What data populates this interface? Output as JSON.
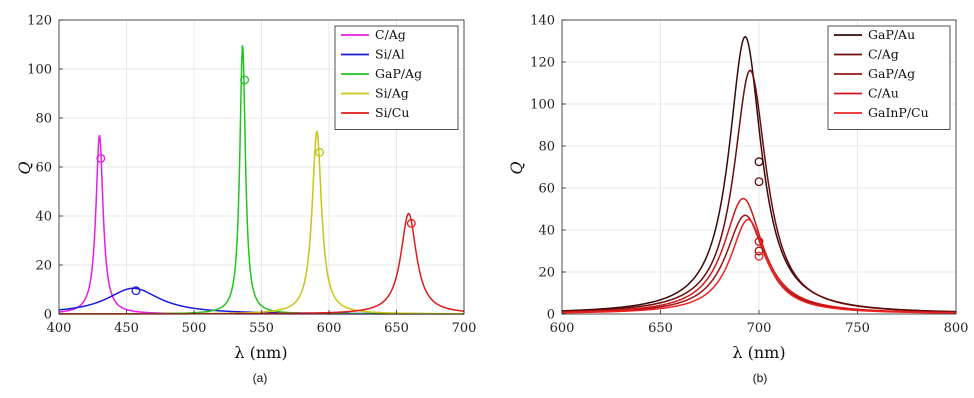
{
  "colors": {
    "magenta": "#e81ce8",
    "blue": "#1a1adb",
    "green": "#22c322",
    "olive": "#c9c415",
    "red": "#e01b1b",
    "dark1": "#3a0a0a",
    "dark2": "#6b0c0c",
    "dark3": "#9a1414",
    "red2": "#d01818",
    "red3": "#ee2222"
  },
  "chart_data": [
    {
      "type": "line",
      "caption": "(a)",
      "xlabel": "λ (nm)",
      "ylabel": "Q",
      "xlim": [
        400,
        700
      ],
      "ylim": [
        0,
        120
      ],
      "xticks": [
        400,
        450,
        500,
        550,
        600,
        650,
        700
      ],
      "yticks": [
        0,
        20,
        40,
        60,
        80,
        100,
        120
      ],
      "grid": true,
      "legend_position": "top-right",
      "series": [
        {
          "name": "C/Ag",
          "color": "magenta",
          "center": 430,
          "peak": 73,
          "hwhm": 3.2,
          "marker": {
            "x": 431,
            "y": 63.5
          }
        },
        {
          "name": "Si/Al",
          "color": "blue",
          "center": 455,
          "peak": 10.5,
          "hwhm": 24,
          "marker": {
            "x": 457,
            "y": 9.5
          }
        },
        {
          "name": "GaP/Ag",
          "color": "green",
          "center": 536,
          "peak": 110,
          "hwhm": 2.5,
          "marker": {
            "x": 537.5,
            "y": 95.5
          }
        },
        {
          "name": "Si/Ag",
          "color": "olive",
          "center": 591,
          "peak": 74.5,
          "hwhm": 4.2,
          "marker": {
            "x": 593,
            "y": 66
          }
        },
        {
          "name": "Si/Cu",
          "color": "red",
          "center": 659,
          "peak": 41,
          "hwhm": 7,
          "marker": {
            "x": 661,
            "y": 37
          }
        }
      ]
    },
    {
      "type": "line",
      "caption": "(b)",
      "xlabel": "λ (nm)",
      "ylabel": "Q",
      "xlim": [
        600,
        800
      ],
      "ylim": [
        0,
        140
      ],
      "xticks": [
        600,
        650,
        700,
        750,
        800
      ],
      "yticks": [
        0,
        20,
        40,
        60,
        80,
        100,
        120,
        140
      ],
      "grid": true,
      "legend_position": "top-right",
      "series": [
        {
          "name": "GaP/Au",
          "color": "dark1",
          "center": 693,
          "peak": 132,
          "hwhm": 10,
          "marker": {
            "x": 700,
            "y": 72.5
          }
        },
        {
          "name": "C/Ag",
          "color": "dark2",
          "center": 695.5,
          "peak": 116,
          "hwhm": 10,
          "marker": {
            "x": 700,
            "y": 63
          }
        },
        {
          "name": "GaP/Ag",
          "color": "dark3",
          "center": 693,
          "peak": 47,
          "hwhm": 12,
          "marker": {
            "x": 700,
            "y": 30
          }
        },
        {
          "name": "C/Au",
          "color": "red2",
          "center": 692,
          "peak": 55,
          "hwhm": 12,
          "marker": {
            "x": 700,
            "y": 34.5
          }
        },
        {
          "name": "GaInP/Cu",
          "color": "red3",
          "center": 694.5,
          "peak": 45,
          "hwhm": 11,
          "marker": {
            "x": 700,
            "y": 27.5
          }
        }
      ]
    }
  ]
}
